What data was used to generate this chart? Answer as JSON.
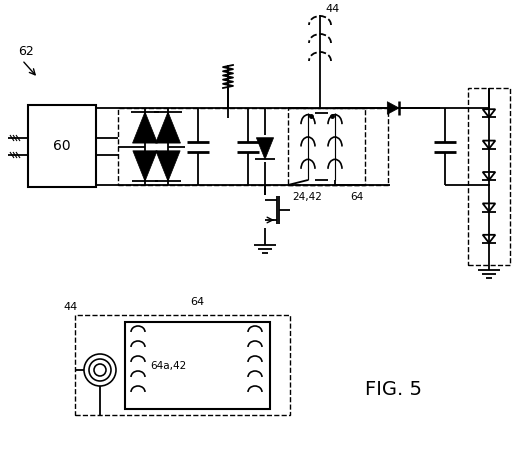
{
  "title": "FIG. 5",
  "label_62": "62",
  "label_60": "60",
  "label_44_top": "44",
  "label_44_bot": "44",
  "label_24_42": "24,42",
  "label_64_top": "64",
  "label_64_bot": "64",
  "label_64a_42": "64a,42",
  "bg_color": "#ffffff",
  "line_color": "#000000"
}
